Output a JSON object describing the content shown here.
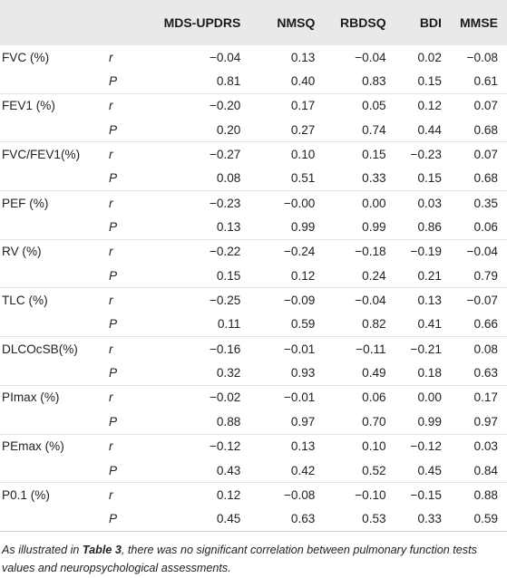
{
  "headers": [
    "",
    "",
    "MDS-UPDRS",
    "NMSQ",
    "RBDSQ",
    "BDI",
    "MMSE"
  ],
  "rows": [
    {
      "variable": "FVC (%)",
      "r": [
        "−0.04",
        "0.13",
        "−0.04",
        "0.02",
        "−0.08"
      ],
      "P": [
        "0.81",
        "0.40",
        "0.83",
        "0.15",
        "0.61"
      ]
    },
    {
      "variable": "FEV1 (%)",
      "r": [
        "−0.20",
        "0.17",
        "0.05",
        "0.12",
        "0.07"
      ],
      "P": [
        "0.20",
        "0.27",
        "0.74",
        "0.44",
        "0.68"
      ]
    },
    {
      "variable": "FVC/FEV1(%)",
      "r": [
        "−0.27",
        "0.10",
        "0.15",
        "−0.23",
        "0.07"
      ],
      "P": [
        "0.08",
        "0.51",
        "0.33",
        "0.15",
        "0.68"
      ]
    },
    {
      "variable": "PEF (%)",
      "r": [
        "−0.23",
        "−0.00",
        "0.00",
        "0.03",
        "0.35"
      ],
      "P": [
        "0.13",
        "0.99",
        "0.99",
        "0.86",
        "0.06"
      ]
    },
    {
      "variable": "RV (%)",
      "r": [
        "−0.22",
        "−0.24",
        "−0.18",
        "−0.19",
        "−0.04"
      ],
      "P": [
        "0.15",
        "0.12",
        "0.24",
        "0.21",
        "0.79"
      ]
    },
    {
      "variable": "TLC (%)",
      "r": [
        "−0.25",
        "−0.09",
        "−0.04",
        "0.13",
        "−0.07"
      ],
      "P": [
        "0.11",
        "0.59",
        "0.82",
        "0.41",
        "0.66"
      ]
    },
    {
      "variable": "DLCOcSB(%)",
      "r": [
        "−0.16",
        "−0.01",
        "−0.11",
        "−0.21",
        "0.08"
      ],
      "P": [
        "0.32",
        "0.93",
        "0.49",
        "0.18",
        "0.63"
      ]
    },
    {
      "variable": "PImax (%)",
      "r": [
        "−0.02",
        "−0.01",
        "0.06",
        "0.00",
        "0.17"
      ],
      "P": [
        "0.88",
        "0.97",
        "0.70",
        "0.99",
        "0.97"
      ]
    },
    {
      "variable": "PEmax (%)",
      "r": [
        "−0.12",
        "0.13",
        "0.10",
        "−0.12",
        "0.03"
      ],
      "P": [
        "0.43",
        "0.42",
        "0.52",
        "0.45",
        "0.84"
      ]
    },
    {
      "variable": "P0.1 (%)",
      "r": [
        "0.12",
        "−0.08",
        "−0.10",
        "−0.15",
        "0.88"
      ],
      "P": [
        "0.45",
        "0.63",
        "0.53",
        "0.33",
        "0.59"
      ]
    }
  ],
  "stat_labels": {
    "r": "r",
    "P": "P"
  },
  "caption": {
    "before": "As illustrated in ",
    "ref": "Table 3",
    "after": ", there was no significant correlation between pulmonary function tests values and neuropsychological assessments."
  },
  "colors": {
    "header_bg": "#e9e9e9",
    "text": "#222222",
    "rule": "#e3e3e3"
  }
}
